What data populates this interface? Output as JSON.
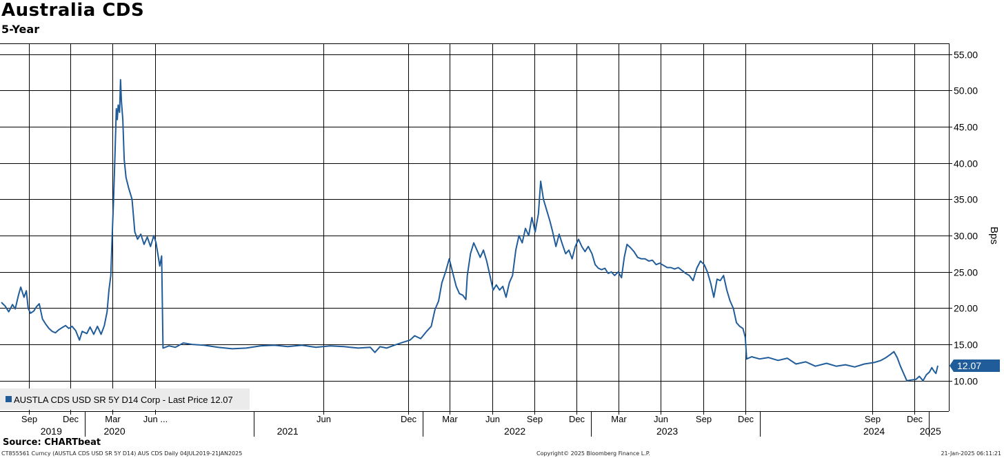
{
  "header": {
    "title": "Australia CDS",
    "subtitle": "5-Year"
  },
  "footer": {
    "source": "Source: CHARTbeat",
    "ticker_info": "CT855561 Curncy (AUSTLA CDS USD SR 5Y D14) AUS CDS  Daily 04JUL2019-21JAN2025",
    "copyright": "Copyright© 2025 Bloomberg Finance L.P.",
    "timestamp": "21-Jan-2025 06:11:21"
  },
  "colors": {
    "line": "#1f5c99",
    "grid": "#000000",
    "legend_bg": "#ebebeb"
  },
  "chart_data": {
    "type": "line",
    "title": "Australia CDS",
    "subtitle": "5-Year",
    "ylabel": "Bps",
    "ylim": [
      5.8,
      56.5
    ],
    "y_ticks": [
      "55.00",
      "50.00",
      "45.00",
      "40.00",
      "35.00",
      "30.00",
      "25.00",
      "20.00",
      "15.00",
      "10.00"
    ],
    "y_tick_values": [
      55,
      50,
      45,
      40,
      35,
      30,
      25,
      20,
      15,
      10
    ],
    "x_range": [
      "2019-07-04",
      "2025-01-21"
    ],
    "grid": true,
    "legend": {
      "position": "bottom-left",
      "label": "AUSTLA CDS USD SR 5Y D14 Corp - Last Price 12.07"
    },
    "last_price_label": "12.07",
    "x_ticks": [
      {
        "label": "Sep",
        "date": "2019-09-01"
      },
      {
        "label": "Dec",
        "date": "2019-12-01"
      },
      {
        "label": "Mar",
        "date": "2020-03-01"
      },
      {
        "label": "Jun ...",
        "date": "2020-06-01"
      },
      {
        "label": "Jun",
        "date": "2021-06-01"
      },
      {
        "label": "Dec",
        "date": "2021-12-01"
      },
      {
        "label": "Mar",
        "date": "2022-03-01"
      },
      {
        "label": "Jun",
        "date": "2022-06-01"
      },
      {
        "label": "Sep",
        "date": "2022-09-01"
      },
      {
        "label": "Dec",
        "date": "2022-12-01"
      },
      {
        "label": "Mar",
        "date": "2023-03-01"
      },
      {
        "label": "Jun",
        "date": "2023-06-01"
      },
      {
        "label": "Sep",
        "date": "2023-09-01"
      },
      {
        "label": "Dec",
        "date": "2023-12-01"
      },
      {
        "label": "Sep",
        "date": "2024-09-01"
      },
      {
        "label": "Dec",
        "date": "2024-12-01"
      }
    ],
    "year_labels": [
      {
        "label": "2019",
        "date": "2019-10-20"
      },
      {
        "label": "2020",
        "date": "2020-03-05"
      },
      {
        "label": "2021",
        "date": "2021-03-15"
      },
      {
        "label": "2022",
        "date": "2022-07-20"
      },
      {
        "label": "2023",
        "date": "2023-06-15"
      },
      {
        "label": "2024",
        "date": "2024-09-05"
      },
      {
        "label": "2025",
        "date": "2025-01-05"
      }
    ],
    "series": [
      {
        "values": [
          [
            "2019-07-04",
            20.8
          ],
          [
            "2019-07-12",
            20.3
          ],
          [
            "2019-07-20",
            19.5
          ],
          [
            "2019-07-28",
            20.5
          ],
          [
            "2019-08-03",
            19.9
          ],
          [
            "2019-08-10",
            21.8
          ],
          [
            "2019-08-15",
            22.9
          ],
          [
            "2019-08-22",
            21.5
          ],
          [
            "2019-08-27",
            22.4
          ],
          [
            "2019-08-31",
            20.0
          ],
          [
            "2019-09-05",
            19.3
          ],
          [
            "2019-09-12",
            19.6
          ],
          [
            "2019-09-18",
            20.2
          ],
          [
            "2019-09-24",
            20.6
          ],
          [
            "2019-10-01",
            18.5
          ],
          [
            "2019-10-08",
            17.8
          ],
          [
            "2019-10-15",
            17.2
          ],
          [
            "2019-10-22",
            16.8
          ],
          [
            "2019-10-29",
            16.6
          ],
          [
            "2019-11-05",
            17.0
          ],
          [
            "2019-11-12",
            17.3
          ],
          [
            "2019-11-20",
            17.6
          ],
          [
            "2019-11-27",
            17.2
          ],
          [
            "2019-12-04",
            17.5
          ],
          [
            "2019-12-12",
            16.9
          ],
          [
            "2019-12-20",
            15.6
          ],
          [
            "2019-12-26",
            16.8
          ],
          [
            "2020-01-05",
            16.5
          ],
          [
            "2020-01-12",
            17.4
          ],
          [
            "2020-01-20",
            16.4
          ],
          [
            "2020-01-28",
            17.5
          ],
          [
            "2020-02-05",
            16.4
          ],
          [
            "2020-02-12",
            17.6
          ],
          [
            "2020-02-18",
            19.5
          ],
          [
            "2020-02-22",
            22.5
          ],
          [
            "2020-02-26",
            24.5
          ],
          [
            "2020-02-29",
            30.0
          ],
          [
            "2020-03-03",
            35.0
          ],
          [
            "2020-03-06",
            41.0
          ],
          [
            "2020-03-09",
            47.5
          ],
          [
            "2020-03-11",
            46.0
          ],
          [
            "2020-03-13",
            48.0
          ],
          [
            "2020-03-16",
            47.0
          ],
          [
            "2020-03-18",
            51.5
          ],
          [
            "2020-03-20",
            48.5
          ],
          [
            "2020-03-23",
            46.0
          ],
          [
            "2020-03-26",
            40.5
          ],
          [
            "2020-03-30",
            38.0
          ],
          [
            "2020-04-05",
            36.5
          ],
          [
            "2020-04-12",
            35.0
          ],
          [
            "2020-04-18",
            30.5
          ],
          [
            "2020-04-24",
            29.5
          ],
          [
            "2020-05-01",
            30.2
          ],
          [
            "2020-05-08",
            28.8
          ],
          [
            "2020-05-15",
            29.8
          ],
          [
            "2020-05-22",
            28.5
          ],
          [
            "2020-05-29",
            30.0
          ],
          [
            "2020-06-03",
            29.0
          ],
          [
            "2020-06-08",
            27.0
          ],
          [
            "2020-06-11",
            25.8
          ],
          [
            "2020-06-15",
            27.2
          ],
          [
            "2020-06-18",
            14.5
          ],
          [
            "2020-07-01",
            14.8
          ],
          [
            "2020-07-15",
            14.6
          ],
          [
            "2020-08-01",
            15.2
          ],
          [
            "2020-08-20",
            15.0
          ],
          [
            "2020-09-15",
            14.9
          ],
          [
            "2020-10-15",
            14.6
          ],
          [
            "2020-11-15",
            14.4
          ],
          [
            "2020-12-15",
            14.5
          ],
          [
            "2021-01-15",
            14.8
          ],
          [
            "2021-02-15",
            14.9
          ],
          [
            "2021-03-15",
            14.7
          ],
          [
            "2021-04-15",
            14.9
          ],
          [
            "2021-05-15",
            14.6
          ],
          [
            "2021-06-15",
            14.8
          ],
          [
            "2021-07-15",
            14.7
          ],
          [
            "2021-08-15",
            14.5
          ],
          [
            "2021-09-10",
            14.6
          ],
          [
            "2021-09-20",
            13.9
          ],
          [
            "2021-10-01",
            14.7
          ],
          [
            "2021-10-15",
            14.5
          ],
          [
            "2021-11-01",
            14.9
          ],
          [
            "2021-11-20",
            15.3
          ],
          [
            "2021-12-05",
            15.6
          ],
          [
            "2021-12-15",
            16.2
          ],
          [
            "2021-12-28",
            15.8
          ],
          [
            "2022-01-10",
            16.8
          ],
          [
            "2022-01-20",
            17.5
          ],
          [
            "2022-01-28",
            19.8
          ],
          [
            "2022-02-05",
            21.0
          ],
          [
            "2022-02-12",
            23.5
          ],
          [
            "2022-02-20",
            25.0
          ],
          [
            "2022-02-28",
            26.8
          ],
          [
            "2022-03-07",
            25.0
          ],
          [
            "2022-03-15",
            23.0
          ],
          [
            "2022-03-22",
            22.0
          ],
          [
            "2022-03-29",
            21.8
          ],
          [
            "2022-04-05",
            21.2
          ],
          [
            "2022-04-08",
            24.5
          ],
          [
            "2022-04-15",
            27.5
          ],
          [
            "2022-04-22",
            29.0
          ],
          [
            "2022-04-29",
            28.0
          ],
          [
            "2022-05-06",
            27.0
          ],
          [
            "2022-05-13",
            28.0
          ],
          [
            "2022-05-20",
            26.5
          ],
          [
            "2022-05-27",
            24.5
          ],
          [
            "2022-06-03",
            22.5
          ],
          [
            "2022-06-10",
            23.2
          ],
          [
            "2022-06-17",
            22.5
          ],
          [
            "2022-06-24",
            23.0
          ],
          [
            "2022-07-01",
            21.5
          ],
          [
            "2022-07-08",
            23.5
          ],
          [
            "2022-07-15",
            24.5
          ],
          [
            "2022-07-22",
            28.0
          ],
          [
            "2022-07-29",
            30.0
          ],
          [
            "2022-08-05",
            29.0
          ],
          [
            "2022-08-12",
            31.0
          ],
          [
            "2022-08-19",
            30.0
          ],
          [
            "2022-08-26",
            32.5
          ],
          [
            "2022-09-02",
            30.5
          ],
          [
            "2022-09-09",
            33.0
          ],
          [
            "2022-09-14",
            37.5
          ],
          [
            "2022-09-20",
            35.0
          ],
          [
            "2022-09-27",
            33.5
          ],
          [
            "2022-10-04",
            32.0
          ],
          [
            "2022-10-10",
            30.5
          ],
          [
            "2022-10-17",
            28.5
          ],
          [
            "2022-10-24",
            30.2
          ],
          [
            "2022-10-31",
            28.8
          ],
          [
            "2022-11-07",
            27.5
          ],
          [
            "2022-11-14",
            28.0
          ],
          [
            "2022-11-21",
            26.8
          ],
          [
            "2022-11-28",
            28.5
          ],
          [
            "2022-12-05",
            29.5
          ],
          [
            "2022-12-12",
            28.5
          ],
          [
            "2022-12-19",
            27.8
          ],
          [
            "2022-12-26",
            28.5
          ],
          [
            "2023-01-03",
            27.5
          ],
          [
            "2023-01-10",
            26.0
          ],
          [
            "2023-01-17",
            25.5
          ],
          [
            "2023-01-24",
            25.3
          ],
          [
            "2023-01-31",
            25.5
          ],
          [
            "2023-02-07",
            24.8
          ],
          [
            "2023-02-14",
            25.0
          ],
          [
            "2023-02-21",
            24.5
          ],
          [
            "2023-03-01",
            25.0
          ],
          [
            "2023-03-08",
            24.2
          ],
          [
            "2023-03-14",
            27.0
          ],
          [
            "2023-03-20",
            28.8
          ],
          [
            "2023-03-28",
            28.3
          ],
          [
            "2023-04-04",
            27.8
          ],
          [
            "2023-04-12",
            27.0
          ],
          [
            "2023-04-20",
            26.8
          ],
          [
            "2023-04-28",
            26.8
          ],
          [
            "2023-05-06",
            26.5
          ],
          [
            "2023-05-14",
            26.6
          ],
          [
            "2023-05-22",
            26.0
          ],
          [
            "2023-05-30",
            26.2
          ],
          [
            "2023-06-07",
            25.9
          ],
          [
            "2023-06-15",
            25.6
          ],
          [
            "2023-06-23",
            25.6
          ],
          [
            "2023-07-01",
            25.4
          ],
          [
            "2023-07-09",
            25.6
          ],
          [
            "2023-07-17",
            25.2
          ],
          [
            "2023-07-25",
            24.8
          ],
          [
            "2023-08-02",
            24.5
          ],
          [
            "2023-08-10",
            23.8
          ],
          [
            "2023-08-18",
            25.5
          ],
          [
            "2023-08-26",
            26.5
          ],
          [
            "2023-09-03",
            26.0
          ],
          [
            "2023-09-10",
            25.0
          ],
          [
            "2023-09-17",
            23.5
          ],
          [
            "2023-09-24",
            21.5
          ],
          [
            "2023-10-01",
            24.0
          ],
          [
            "2023-10-08",
            23.8
          ],
          [
            "2023-10-15",
            24.5
          ],
          [
            "2023-10-22",
            22.5
          ],
          [
            "2023-10-29",
            21.0
          ],
          [
            "2023-11-05",
            20.0
          ],
          [
            "2023-11-12",
            18.0
          ],
          [
            "2023-11-19",
            17.5
          ],
          [
            "2023-11-26",
            17.2
          ],
          [
            "2023-12-01",
            16.0
          ],
          [
            "2023-12-04",
            13.0
          ],
          [
            "2023-12-15",
            13.3
          ],
          [
            "2024-01-01",
            13.0
          ],
          [
            "2024-01-20",
            13.2
          ],
          [
            "2024-02-10",
            12.8
          ],
          [
            "2024-03-01",
            13.1
          ],
          [
            "2024-03-20",
            12.3
          ],
          [
            "2024-04-10",
            12.6
          ],
          [
            "2024-05-01",
            12.0
          ],
          [
            "2024-05-25",
            12.4
          ],
          [
            "2024-06-15",
            12.0
          ],
          [
            "2024-07-05",
            12.2
          ],
          [
            "2024-07-25",
            11.9
          ],
          [
            "2024-08-15",
            12.3
          ],
          [
            "2024-09-05",
            12.5
          ],
          [
            "2024-09-20",
            12.8
          ],
          [
            "2024-10-01",
            13.2
          ],
          [
            "2024-10-10",
            13.6
          ],
          [
            "2024-10-18",
            14.0
          ],
          [
            "2024-10-25",
            13.2
          ],
          [
            "2024-11-01",
            12.0
          ],
          [
            "2024-11-08",
            11.0
          ],
          [
            "2024-11-15",
            10.0
          ],
          [
            "2024-11-25",
            10.1
          ],
          [
            "2024-12-05",
            10.2
          ],
          [
            "2024-12-12",
            10.6
          ],
          [
            "2024-12-20",
            10.0
          ],
          [
            "2024-12-27",
            10.8
          ],
          [
            "2025-01-03",
            11.2
          ],
          [
            "2025-01-08",
            11.8
          ],
          [
            "2025-01-13",
            11.3
          ],
          [
            "2025-01-17",
            11.0
          ],
          [
            "2025-01-21",
            12.07
          ]
        ]
      }
    ]
  }
}
